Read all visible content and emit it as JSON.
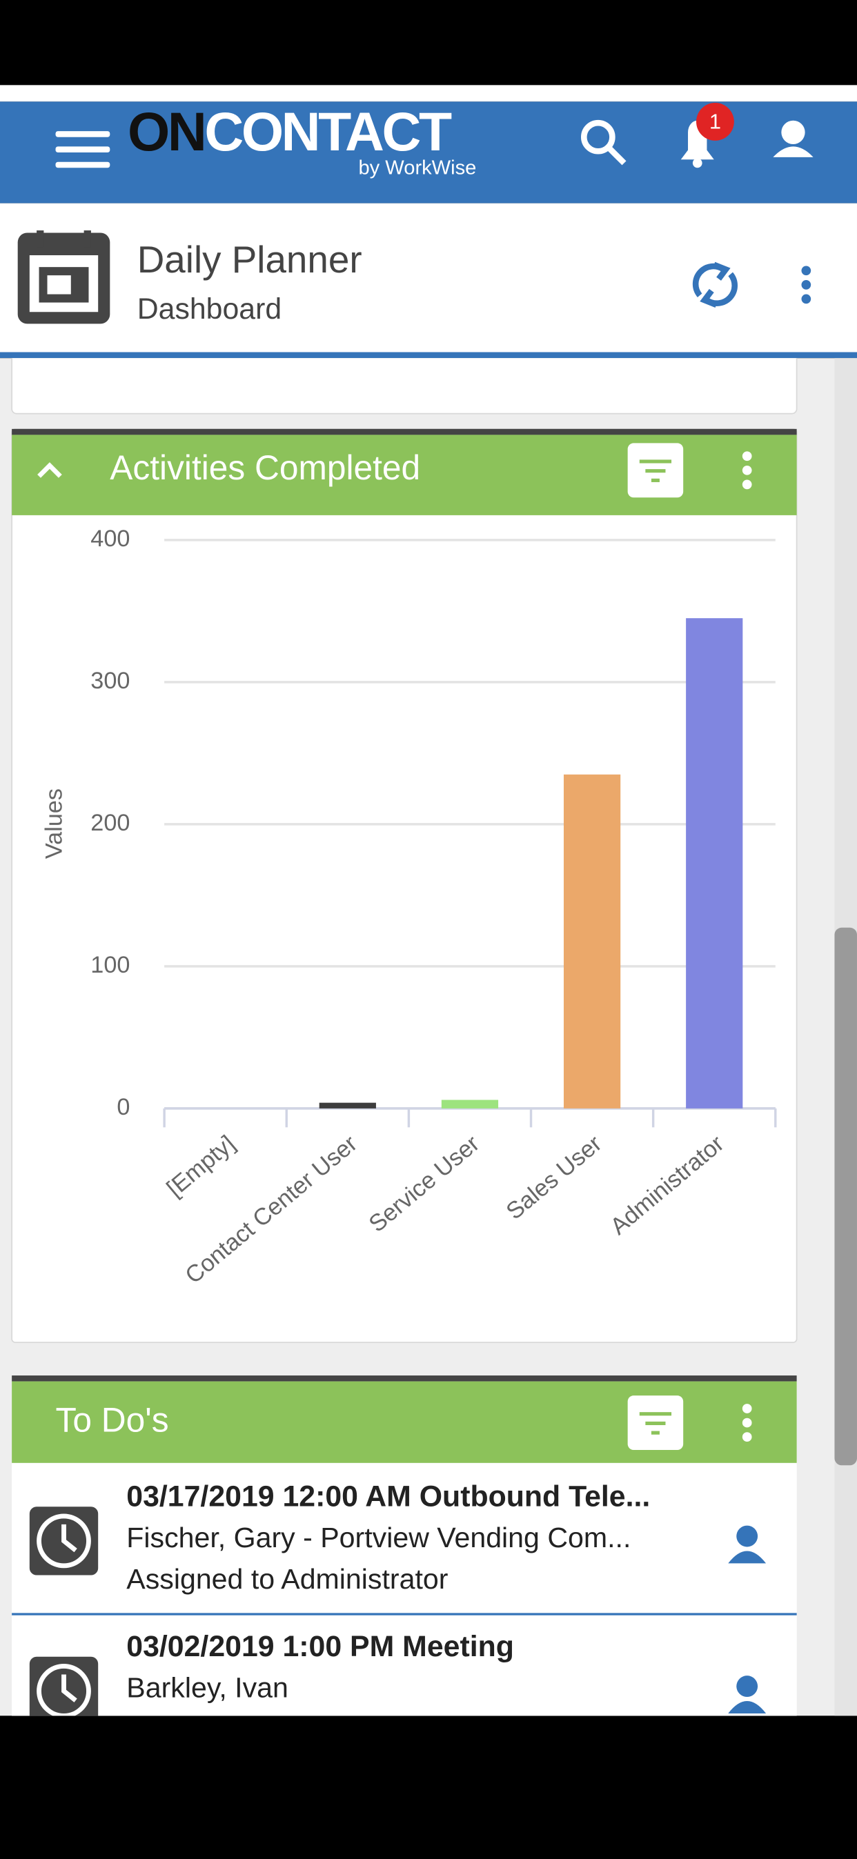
{
  "header": {
    "logo_prefix": "ON",
    "logo_main": "CONTACT",
    "logo_sub": "by WorkWise",
    "notification_count": "1"
  },
  "page": {
    "title": "Daily Planner",
    "subtitle": "Dashboard"
  },
  "chart_data": {
    "type": "bar",
    "title": "Activities Completed",
    "y_label": "Values",
    "categories": [
      "[Empty]",
      "Contact Center User",
      "Service User",
      "Sales User",
      "Administrator"
    ],
    "values": [
      0,
      4,
      6,
      235,
      345
    ],
    "colors": [
      "#4d4d4d",
      "#3d3d3d",
      "#9de37e",
      "#eba86a",
      "#8086e0"
    ],
    "ylim": [
      0,
      400
    ],
    "yticks": [
      0,
      100,
      200,
      300,
      400
    ],
    "grid": true
  },
  "todo": {
    "title": "To Do's",
    "items": [
      {
        "lines": [
          "03/17/2019 12:00 AM Outbound Tele...",
          "Fischer, Gary - Portview Vending Com...",
          "Assigned to Administrator"
        ]
      },
      {
        "lines": [
          "03/02/2019 1:00 PM Meeting",
          "Barkley, Ivan"
        ]
      }
    ]
  }
}
